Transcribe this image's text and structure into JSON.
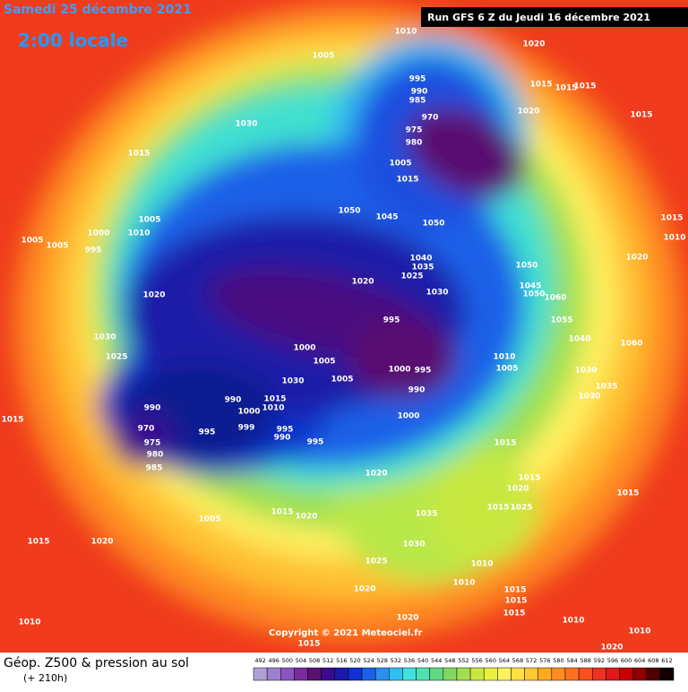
{
  "header": {
    "valid_time": "Samedi 25 décembre 2021",
    "local_time": "2:00 locale",
    "run": "Run GFS 6 Z du Jeudi 16 décembre 2021"
  },
  "footer": {
    "title": "Géop. Z500 & pression au sol",
    "lead": "(+ 210h)",
    "copyright": "Copyright © 2021 Meteociel.fr"
  },
  "legend": {
    "values": [
      492,
      496,
      500,
      504,
      508,
      512,
      516,
      520,
      524,
      528,
      532,
      536,
      540,
      544,
      548,
      552,
      556,
      560,
      564,
      568,
      572,
      576,
      580,
      584,
      588,
      592,
      596,
      600,
      604,
      608,
      612
    ],
    "colors": [
      "#ae9fd6",
      "#9c7fcd",
      "#8a55c0",
      "#7a2a9f",
      "#5a1070",
      "#3a0a90",
      "#1a1aa8",
      "#1030d0",
      "#1a60e8",
      "#2a90f0",
      "#30c0f0",
      "#40e0e0",
      "#50e0b0",
      "#60d880",
      "#80d860",
      "#a0e050",
      "#c8e840",
      "#e8f040",
      "#fff060",
      "#ffe040",
      "#ffc830",
      "#ffaa20",
      "#ff8c20",
      "#ff7020",
      "#f85020",
      "#f03020",
      "#e01818",
      "#c80000",
      "#900000",
      "#500000",
      "#100000"
    ]
  },
  "pressure_labels": [
    1010,
    1020,
    1005,
    1015,
    1015,
    1015,
    995,
    990,
    985,
    970,
    975,
    980,
    1015,
    1020,
    1030,
    1015,
    1005,
    1015,
    1050,
    1045,
    1050,
    1005,
    1000,
    1010,
    1005,
    1005,
    995,
    1040,
    1035,
    1020,
    1025,
    1030,
    1050,
    1020,
    1045,
    1050,
    1060,
    1055,
    1040,
    1060,
    995,
    1020,
    1030,
    1025,
    1000,
    1005,
    1000,
    995,
    990,
    1005,
    1010,
    1005,
    1030,
    1035,
    1030,
    1000,
    990,
    970,
    975,
    980,
    985,
    995,
    990,
    1000,
    999,
    995,
    990,
    995,
    1030,
    1015,
    1010,
    1015,
    1015,
    1020,
    1015,
    1020,
    1015,
    1025,
    1015,
    1005,
    1015,
    1020,
    1035,
    1030,
    1025,
    1010,
    1010,
    1015,
    1015,
    1020,
    1015,
    1015,
    1020,
    1010,
    1020,
    1015,
    1010,
    1010,
    1020,
    1015,
    1010
  ]
}
